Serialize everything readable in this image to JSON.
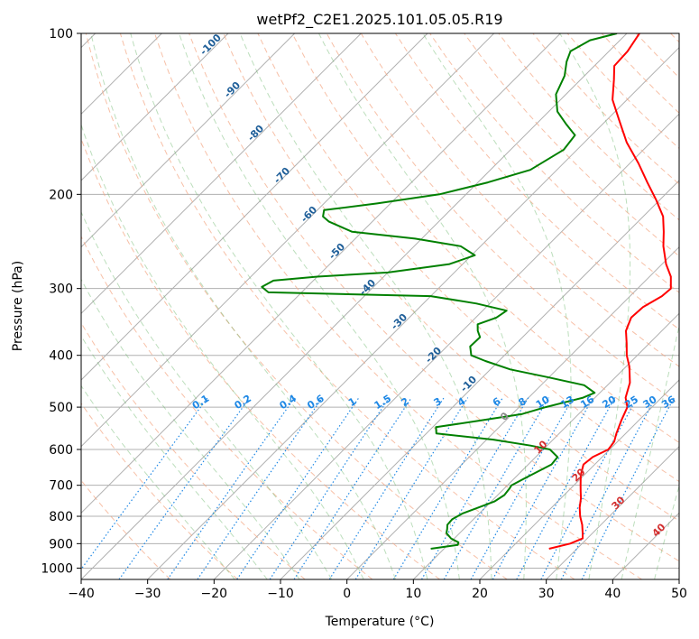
{
  "chart_data": {
    "type": "line",
    "title": "wetPf2_C2E1.2025.101.05.05.R19",
    "xlabel": "Temperature (°C)",
    "ylabel": "Pressure (hPa)",
    "xlim": [
      -40,
      50
    ],
    "ylim": [
      1050,
      100
    ],
    "y_scale": "log",
    "skew": true,
    "grid": true,
    "x_ticks": [
      -40,
      -30,
      -20,
      -10,
      0,
      10,
      20,
      30,
      40,
      50
    ],
    "y_ticks": [
      100,
      200,
      300,
      400,
      500,
      600,
      700,
      800,
      900,
      1000
    ],
    "series": [
      {
        "color": "#ff0000",
        "points": [
          [
            920,
            25.8
          ],
          [
            900,
            28.2
          ],
          [
            880,
            29.3
          ],
          [
            860,
            28.5
          ],
          [
            830,
            27.2
          ],
          [
            800,
            25.6
          ],
          [
            770,
            24.2
          ],
          [
            740,
            23.0
          ],
          [
            720,
            22.0
          ],
          [
            700,
            21.0
          ],
          [
            670,
            19.5
          ],
          [
            640,
            18.3
          ],
          [
            620,
            18.6
          ],
          [
            600,
            19.8
          ],
          [
            580,
            19.5
          ],
          [
            560,
            18.6
          ],
          [
            530,
            17.4
          ],
          [
            500,
            16.3
          ],
          [
            480,
            14.6
          ],
          [
            450,
            13.0
          ],
          [
            420,
            10.5
          ],
          [
            400,
            8.4
          ],
          [
            380,
            6.6
          ],
          [
            360,
            4.6
          ],
          [
            340,
            3.4
          ],
          [
            325,
            3.6
          ],
          [
            310,
            4.8
          ],
          [
            300,
            5.0
          ],
          [
            285,
            3.2
          ],
          [
            270,
            0.6
          ],
          [
            250,
            -2.5
          ],
          [
            235,
            -4.6
          ],
          [
            220,
            -7.0
          ],
          [
            205,
            -10.5
          ],
          [
            190,
            -14.5
          ],
          [
            175,
            -18.7
          ],
          [
            160,
            -23.6
          ],
          [
            145,
            -28.2
          ],
          [
            133,
            -32.2
          ],
          [
            122,
            -35.0
          ],
          [
            115,
            -37.0
          ],
          [
            108,
            -37.2
          ],
          [
            100,
            -38.1
          ]
        ]
      },
      {
        "color": "#008000",
        "points": [
          [
            920,
            8.0
          ],
          [
            905,
            11.5
          ],
          [
            895,
            11.2
          ],
          [
            880,
            9.5
          ],
          [
            860,
            8.0
          ],
          [
            845,
            7.5
          ],
          [
            830,
            6.9
          ],
          [
            810,
            6.8
          ],
          [
            790,
            7.5
          ],
          [
            770,
            9.0
          ],
          [
            750,
            10.5
          ],
          [
            730,
            11.0
          ],
          [
            710,
            10.8
          ],
          [
            700,
            10.6
          ],
          [
            680,
            11.5
          ],
          [
            660,
            12.5
          ],
          [
            640,
            13.5
          ],
          [
            620,
            13.3
          ],
          [
            600,
            11.0
          ],
          [
            590,
            7.5
          ],
          [
            575,
            1.0
          ],
          [
            560,
            -8.5
          ],
          [
            545,
            -9.5
          ],
          [
            530,
            -4.0
          ],
          [
            515,
            1.5
          ],
          [
            500,
            4.0
          ],
          [
            480,
            8.2
          ],
          [
            470,
            9.2
          ],
          [
            455,
            6.5
          ],
          [
            440,
            0.0
          ],
          [
            425,
            -7.0
          ],
          [
            410,
            -12.0
          ],
          [
            400,
            -15.0
          ],
          [
            385,
            -16.5
          ],
          [
            370,
            -16.4
          ],
          [
            360,
            -17.7
          ],
          [
            350,
            -18.7
          ],
          [
            340,
            -16.9
          ],
          [
            330,
            -16.4
          ],
          [
            320,
            -22.0
          ],
          [
            310,
            -30.0
          ],
          [
            305,
            -55.0
          ],
          [
            298,
            -56.8
          ],
          [
            290,
            -56.0
          ],
          [
            285,
            -50.0
          ],
          [
            280,
            -40.0
          ],
          [
            270,
            -32.0
          ],
          [
            260,
            -29.5
          ],
          [
            250,
            -33.0
          ],
          [
            242,
            -41.0
          ],
          [
            235,
            -51.5
          ],
          [
            225,
            -56.5
          ],
          [
            220,
            -58.2
          ],
          [
            214,
            -59.0
          ],
          [
            208,
            -52.0
          ],
          [
            200,
            -44.0
          ],
          [
            190,
            -38.5
          ],
          [
            180,
            -34.0
          ],
          [
            165,
            -32.0
          ],
          [
            155,
            -32.5
          ],
          [
            148,
            -35.4
          ],
          [
            140,
            -38.7
          ],
          [
            130,
            -41.5
          ],
          [
            120,
            -43.0
          ],
          [
            113,
            -44.8
          ],
          [
            108,
            -45.8
          ],
          [
            103,
            -44.5
          ],
          [
            100,
            -41.5
          ]
        ]
      }
    ],
    "dry_adiabat_labels": [
      "-100",
      "-90",
      "-80",
      "-70",
      "-60",
      "-50",
      "-40",
      "-30",
      "-20",
      "-10",
      "0"
    ],
    "moist_adiabat_labels": [
      "0",
      "10",
      "20",
      "30",
      "40"
    ],
    "mixing_ratio_labels": [
      "0.1",
      "0.2",
      "0.4",
      "0.6",
      "1",
      "1.5",
      "2",
      "3",
      "4",
      "6",
      "8",
      "10",
      "13",
      "16",
      "20",
      "25",
      "30",
      "36"
    ]
  }
}
